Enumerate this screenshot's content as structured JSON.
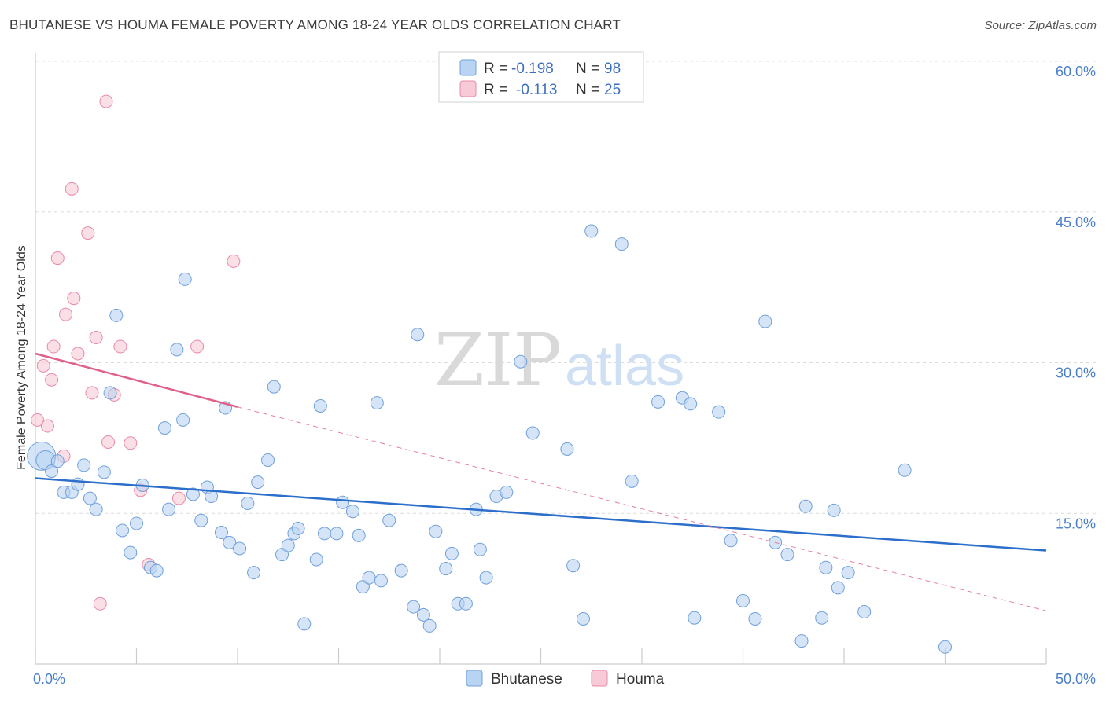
{
  "header": {
    "title": "BHUTANESE VS HOUMA FEMALE POVERTY AMONG 18-24 YEAR OLDS CORRELATION CHART",
    "source": "Source: ZipAtlas.com"
  },
  "watermark": {
    "zip": "ZIP",
    "atlas": "atlas"
  },
  "colors": {
    "bhutanese_fill": "#b9d3f2",
    "bhutanese_stroke": "#6fa0dc",
    "bhutanese_line": "#2c6fcb",
    "houma_fill": "#f8c9d6",
    "houma_stroke": "#e88aa6",
    "houma_line": "#e0608a"
  },
  "legend": {
    "r_label": "R =",
    "n_label": "N =",
    "rows": [
      {
        "r": "-0.198",
        "n": "98"
      },
      {
        "r": "-0.113",
        "n": "25"
      }
    ]
  },
  "chart_data": {
    "type": "scatter",
    "ylabel": "Female Poverty Among 18-24 Year Olds",
    "xlim": [
      0,
      50
    ],
    "ylim": [
      0,
      60
    ],
    "x_tick_labels": [
      {
        "value": 0,
        "label": "0.0%"
      },
      {
        "value": 50,
        "label": "50.0%"
      }
    ],
    "y_tick_labels": [
      {
        "value": 15,
        "label": "15.0%"
      },
      {
        "value": 30,
        "label": "30.0%"
      },
      {
        "value": 45,
        "label": "45.0%"
      },
      {
        "value": 60,
        "label": "60.0%"
      }
    ],
    "x_minor_ticks": [
      0,
      5,
      10,
      15,
      20,
      25,
      30,
      35,
      40,
      45,
      50
    ],
    "grid": true,
    "legend_position": "top-center",
    "series": [
      {
        "name": "Bhutanese",
        "r": -0.198,
        "n": 98,
        "trend": {
          "x0": 0,
          "y0": 18.5,
          "x1": 50,
          "y1": 11.3
        },
        "points": [
          [
            0.3,
            20.7
          ],
          [
            0.5,
            20.3
          ],
          [
            0.8,
            19.2
          ],
          [
            1.1,
            20.2
          ],
          [
            1.4,
            17.1
          ],
          [
            1.8,
            17.1
          ],
          [
            2.1,
            17.9
          ],
          [
            2.4,
            19.8
          ],
          [
            2.7,
            16.5
          ],
          [
            3.0,
            15.4
          ],
          [
            3.4,
            19.1
          ],
          [
            3.7,
            27.0
          ],
          [
            4.0,
            34.7
          ],
          [
            4.3,
            13.3
          ],
          [
            4.7,
            11.1
          ],
          [
            5.0,
            14.0
          ],
          [
            5.3,
            17.8
          ],
          [
            5.7,
            9.6
          ],
          [
            6.0,
            9.3
          ],
          [
            6.4,
            23.5
          ],
          [
            6.6,
            15.4
          ],
          [
            7.0,
            31.3
          ],
          [
            7.3,
            24.3
          ],
          [
            7.4,
            38.3
          ],
          [
            7.8,
            16.9
          ],
          [
            8.2,
            14.3
          ],
          [
            8.5,
            17.6
          ],
          [
            8.7,
            16.7
          ],
          [
            9.2,
            13.1
          ],
          [
            9.4,
            25.5
          ],
          [
            9.6,
            12.1
          ],
          [
            10.1,
            11.5
          ],
          [
            10.5,
            16.0
          ],
          [
            10.8,
            9.1
          ],
          [
            11.0,
            18.1
          ],
          [
            11.5,
            20.3
          ],
          [
            11.8,
            27.6
          ],
          [
            12.2,
            10.9
          ],
          [
            12.5,
            11.8
          ],
          [
            12.8,
            13.0
          ],
          [
            13.0,
            13.5
          ],
          [
            13.3,
            4.0
          ],
          [
            13.9,
            10.4
          ],
          [
            14.1,
            25.7
          ],
          [
            14.3,
            13.0
          ],
          [
            14.9,
            13.0
          ],
          [
            15.2,
            16.1
          ],
          [
            15.7,
            15.2
          ],
          [
            16.0,
            12.8
          ],
          [
            16.2,
            7.7
          ],
          [
            16.5,
            8.6
          ],
          [
            16.9,
            26.0
          ],
          [
            17.1,
            8.3
          ],
          [
            17.5,
            14.3
          ],
          [
            18.1,
            9.3
          ],
          [
            18.7,
            5.7
          ],
          [
            18.9,
            32.8
          ],
          [
            19.2,
            4.9
          ],
          [
            19.5,
            3.8
          ],
          [
            19.8,
            13.2
          ],
          [
            20.3,
            9.5
          ],
          [
            20.6,
            11.0
          ],
          [
            20.9,
            6.0
          ],
          [
            21.3,
            6.0
          ],
          [
            21.8,
            15.4
          ],
          [
            22.0,
            11.4
          ],
          [
            22.3,
            8.6
          ],
          [
            22.8,
            16.7
          ],
          [
            23.3,
            17.1
          ],
          [
            24.0,
            30.1
          ],
          [
            24.6,
            23.0
          ],
          [
            26.3,
            21.4
          ],
          [
            26.6,
            9.8
          ],
          [
            27.1,
            4.5
          ],
          [
            27.5,
            43.1
          ],
          [
            29.0,
            41.8
          ],
          [
            29.5,
            18.2
          ],
          [
            30.8,
            26.1
          ],
          [
            32.0,
            26.5
          ],
          [
            32.4,
            25.9
          ],
          [
            32.6,
            4.6
          ],
          [
            33.8,
            25.1
          ],
          [
            34.4,
            12.3
          ],
          [
            35.0,
            6.3
          ],
          [
            35.6,
            4.5
          ],
          [
            36.1,
            34.1
          ],
          [
            36.6,
            12.1
          ],
          [
            37.2,
            10.9
          ],
          [
            37.9,
            2.3
          ],
          [
            38.1,
            15.7
          ],
          [
            38.9,
            4.6
          ],
          [
            39.1,
            9.6
          ],
          [
            39.5,
            15.3
          ],
          [
            39.7,
            7.6
          ],
          [
            40.2,
            9.1
          ],
          [
            41.0,
            5.2
          ],
          [
            43.0,
            19.3
          ],
          [
            45.0,
            1.7
          ]
        ]
      },
      {
        "name": "Houma",
        "r": -0.113,
        "n": 25,
        "trend": {
          "x0": 0,
          "y0": 30.9,
          "x1": 10,
          "y1": 25.6
        },
        "trend_extended": {
          "x0": 10,
          "y0": 25.6,
          "x1": 50,
          "y1": 5.3
        },
        "points": [
          [
            0.1,
            24.3
          ],
          [
            0.4,
            29.7
          ],
          [
            0.6,
            23.7
          ],
          [
            0.8,
            28.3
          ],
          [
            0.9,
            31.6
          ],
          [
            1.1,
            40.4
          ],
          [
            1.4,
            20.7
          ],
          [
            1.5,
            34.8
          ],
          [
            1.8,
            47.3
          ],
          [
            1.9,
            36.4
          ],
          [
            2.1,
            30.9
          ],
          [
            2.6,
            42.9
          ],
          [
            2.8,
            27.0
          ],
          [
            3.0,
            32.5
          ],
          [
            3.2,
            6.0
          ],
          [
            3.5,
            56.0
          ],
          [
            3.6,
            22.1
          ],
          [
            3.9,
            26.8
          ],
          [
            4.2,
            31.6
          ],
          [
            4.7,
            22.0
          ],
          [
            5.2,
            17.3
          ],
          [
            5.6,
            9.9
          ],
          [
            7.1,
            16.5
          ],
          [
            8.0,
            31.6
          ],
          [
            9.8,
            40.1
          ]
        ]
      }
    ]
  },
  "bottom_legend": {
    "items": [
      "Bhutanese",
      "Houma"
    ]
  }
}
